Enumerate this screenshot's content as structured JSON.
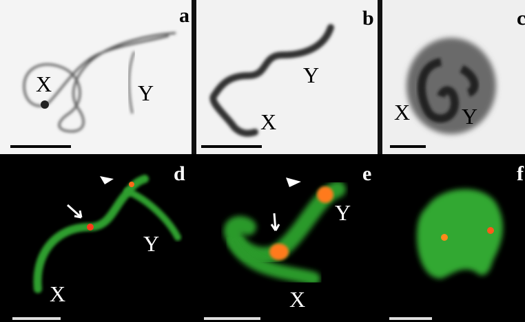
{
  "panels": [
    {
      "label": "a",
      "texts": [
        "X",
        "Y"
      ]
    },
    {
      "label": "b",
      "texts": [
        "Y",
        "X"
      ]
    },
    {
      "label": "c",
      "texts": [
        "X",
        "Y"
      ]
    },
    {
      "label": "d",
      "texts": [
        "Y",
        "X"
      ]
    },
    {
      "label": "e",
      "texts": [
        "Y",
        "X"
      ]
    },
    {
      "label": "f"
    }
  ]
}
